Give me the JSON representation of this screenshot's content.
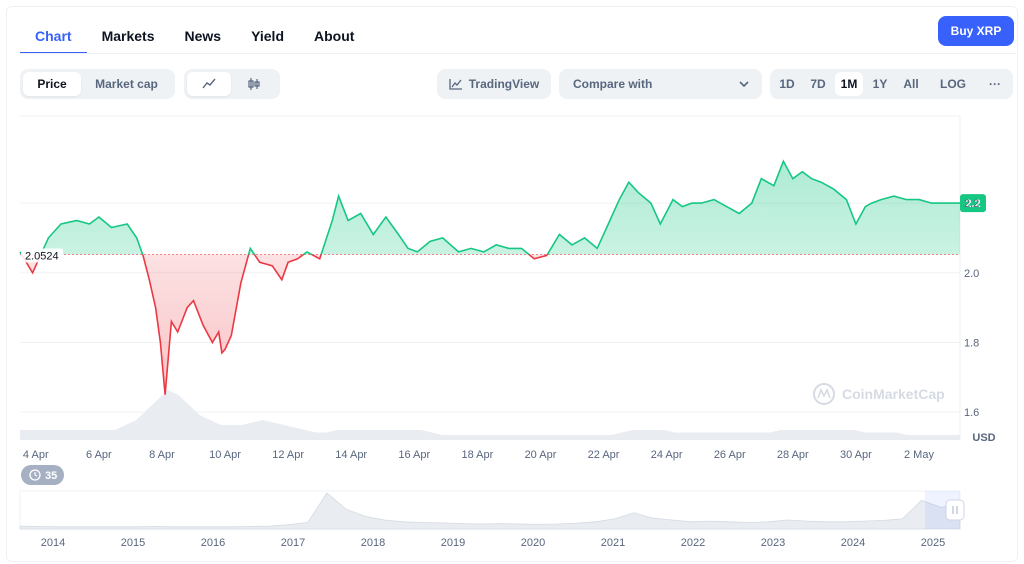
{
  "tabs": [
    {
      "label": "Chart",
      "active": true
    },
    {
      "label": "Markets",
      "active": false
    },
    {
      "label": "News",
      "active": false
    },
    {
      "label": "Yield",
      "active": false
    },
    {
      "label": "About",
      "active": false
    }
  ],
  "buy_button": "Buy XRP",
  "toolbar": {
    "price_label": "Price",
    "market_cap_label": "Market cap",
    "line_chart_icon": "line-chart-icon",
    "candle_chart_icon": "candlestick-icon",
    "tradingview_label": "TradingView",
    "compare_placeholder": "Compare with",
    "ranges": [
      "1D",
      "7D",
      "1M",
      "1Y",
      "All"
    ],
    "active_range": "1M",
    "log_label": "LOG",
    "more_label": "···"
  },
  "watermark": "CoinMarketCap",
  "event_badge": "35",
  "colors": {
    "up": "#16c784",
    "down": "#ea3943",
    "accent": "#3861fb"
  },
  "chart_data": {
    "type": "line",
    "currency": "USD",
    "reference_value": 2.0524,
    "reference_label": "2.0524",
    "current_value": 2.2,
    "current_label": "2.2",
    "ylim": [
      1.52,
      2.45
    ],
    "yticks": [
      1.6,
      1.8,
      2.0,
      2.2
    ],
    "ytick_labels": [
      "1.6",
      "1.8",
      "2.0",
      "2.2"
    ],
    "x_range_days": [
      3.5,
      33.3
    ],
    "xtick_days": [
      4,
      6,
      8,
      10,
      12,
      14,
      16,
      18,
      20,
      22,
      24,
      26,
      28,
      30,
      32
    ],
    "xtick_labels": [
      "4 Apr",
      "6 Apr",
      "8 Apr",
      "10 Apr",
      "12 Apr",
      "14 Apr",
      "16 Apr",
      "18 Apr",
      "20 Apr",
      "22 Apr",
      "24 Apr",
      "26 Apr",
      "28 Apr",
      "30 Apr",
      "2 May"
    ],
    "series_days": [
      3.5,
      3.9,
      4.4,
      4.8,
      5.3,
      5.7,
      6.0,
      6.4,
      6.9,
      7.2,
      7.4,
      7.6,
      7.8,
      7.95,
      8.1,
      8.3,
      8.5,
      8.8,
      9.0,
      9.3,
      9.6,
      9.8,
      9.9,
      10.0,
      10.2,
      10.5,
      10.8,
      11.1,
      11.5,
      11.8,
      12.0,
      12.3,
      12.6,
      13.0,
      13.4,
      13.6,
      13.9,
      14.3,
      14.7,
      15.1,
      15.5,
      15.8,
      16.1,
      16.5,
      16.9,
      17.4,
      17.8,
      18.2,
      18.6,
      19.0,
      19.4,
      19.8,
      20.2,
      20.6,
      21.0,
      21.4,
      21.8,
      22.2,
      22.5,
      22.8,
      23.1,
      23.5,
      23.8,
      24.2,
      24.5,
      24.8,
      25.1,
      25.5,
      25.9,
      26.3,
      26.7,
      27.0,
      27.4,
      27.7,
      28.0,
      28.3,
      28.6,
      28.9,
      29.3,
      29.7,
      30.0,
      30.3,
      30.5,
      30.8,
      31.2,
      31.6,
      32.0,
      32.4,
      32.8,
      33.3
    ],
    "series_values": [
      2.06,
      2.0,
      2.1,
      2.14,
      2.15,
      2.14,
      2.16,
      2.13,
      2.14,
      2.1,
      2.05,
      1.98,
      1.9,
      1.8,
      1.65,
      1.86,
      1.83,
      1.9,
      1.92,
      1.85,
      1.8,
      1.83,
      1.77,
      1.78,
      1.82,
      1.97,
      2.07,
      2.03,
      2.02,
      1.98,
      2.03,
      2.04,
      2.06,
      2.04,
      2.15,
      2.22,
      2.15,
      2.17,
      2.11,
      2.16,
      2.11,
      2.07,
      2.06,
      2.09,
      2.1,
      2.06,
      2.07,
      2.06,
      2.08,
      2.07,
      2.07,
      2.04,
      2.05,
      2.11,
      2.08,
      2.1,
      2.07,
      2.15,
      2.21,
      2.26,
      2.23,
      2.2,
      2.14,
      2.21,
      2.19,
      2.2,
      2.2,
      2.21,
      2.19,
      2.17,
      2.2,
      2.27,
      2.25,
      2.32,
      2.27,
      2.29,
      2.27,
      2.26,
      2.24,
      2.21,
      2.14,
      2.19,
      2.2,
      2.21,
      2.22,
      2.21,
      2.21,
      2.2,
      2.2,
      2.2
    ],
    "volume_values": [
      0.2,
      0.2,
      0.2,
      0.2,
      0.2,
      0.2,
      0.2,
      0.2,
      0.2,
      0.2,
      0.3,
      0.4,
      0.6,
      0.8,
      1.0,
      0.9,
      0.7,
      0.5,
      0.4,
      0.3,
      0.3,
      0.3,
      0.35,
      0.4,
      0.35,
      0.3,
      0.25,
      0.2,
      0.15,
      0.15,
      0.2,
      0.2,
      0.2,
      0.2,
      0.2,
      0.2,
      0.2,
      0.2,
      0.2,
      0.15,
      0.1,
      0.1,
      0.1,
      0.1,
      0.1,
      0.1,
      0.1,
      0.1,
      0.1,
      0.1,
      0.1,
      0.1,
      0.1,
      0.1,
      0.1,
      0.1,
      0.1,
      0.15,
      0.2,
      0.2,
      0.2,
      0.2,
      0.15,
      0.15,
      0.15,
      0.15,
      0.15,
      0.15,
      0.15,
      0.15,
      0.15,
      0.15,
      0.2,
      0.2,
      0.2,
      0.2,
      0.2,
      0.2,
      0.2,
      0.2,
      0.15,
      0.15,
      0.15,
      0.15,
      0.1,
      0.1,
      0.1,
      0.1,
      0.1,
      0.1
    ],
    "overview": {
      "year_labels": [
        "2014",
        "2015",
        "2016",
        "2017",
        "2018",
        "2019",
        "2020",
        "2021",
        "2022",
        "2023",
        "2024",
        "2025"
      ],
      "values": [
        0.08,
        0.07,
        0.06,
        0.06,
        0.06,
        0.06,
        0.06,
        0.07,
        0.06,
        0.06,
        0.06,
        0.06,
        0.07,
        0.08,
        0.12,
        0.18,
        1.0,
        0.55,
        0.35,
        0.25,
        0.2,
        0.18,
        0.17,
        0.15,
        0.14,
        0.15,
        0.14,
        0.13,
        0.14,
        0.16,
        0.2,
        0.28,
        0.45,
        0.3,
        0.25,
        0.2,
        0.22,
        0.2,
        0.18,
        0.2,
        0.25,
        0.22,
        0.2,
        0.2,
        0.22,
        0.24,
        0.28,
        0.8,
        0.6,
        0.7
      ]
    }
  }
}
